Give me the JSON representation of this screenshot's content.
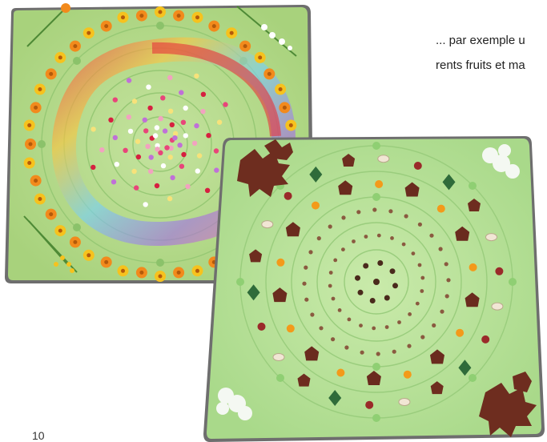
{
  "captions": {
    "line1": "... par exemple u",
    "line2": "rents fruits et ma"
  },
  "page_number": "10",
  "colors": {
    "mat_light": "#b5dc8e",
    "mat_frame": "#8fc36c",
    "ring_line": "#9acd7d",
    "orange_flower": "#f28a1c",
    "yellow_flower": "#f6c21e",
    "leaf_brown": "#6e2d1f"
  }
}
